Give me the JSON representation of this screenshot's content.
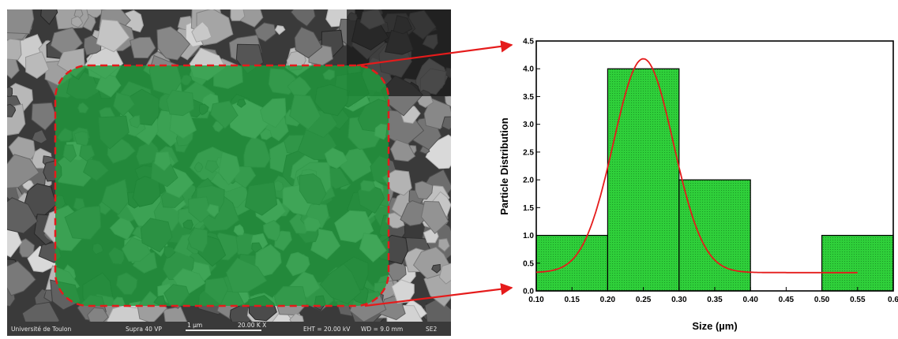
{
  "sem_panel": {
    "infobar": {
      "institution": "Université de Toulon",
      "instrument": "Supra 40 VP",
      "scale_label": "1 µm",
      "magnification": "20.00 K X",
      "eht": "EHT = 20.00 kV",
      "wd": "WD = 9.0 mm",
      "detector": "SE2"
    },
    "highlight_color": "#1e9b3c",
    "outline_color": "#e51b1b"
  },
  "chart_data": {
    "type": "bar",
    "bins": [
      {
        "from": 0.1,
        "to": 0.2,
        "value": 1
      },
      {
        "from": 0.2,
        "to": 0.3,
        "value": 4
      },
      {
        "from": 0.3,
        "to": 0.4,
        "value": 2
      },
      {
        "from": 0.4,
        "to": 0.5,
        "value": 0
      },
      {
        "from": 0.5,
        "to": 0.6,
        "value": 1
      }
    ],
    "fit_curve": {
      "type": "gaussian",
      "y0": 0.33,
      "xc": 0.25,
      "amplitude": 3.85,
      "sigma": 0.042,
      "x_range": [
        0.1,
        0.55
      ]
    },
    "xlabel": "Size (µm)",
    "ylabel": "Particle Distribution",
    "xlim": [
      0.1,
      0.6
    ],
    "ylim": [
      0.0,
      4.5
    ],
    "x_ticks": [
      "0.10",
      "0.15",
      "0.20",
      "0.25",
      "0.30",
      "0.35",
      "0.40",
      "0.45",
      "0.50",
      "0.55",
      "0.6"
    ],
    "y_ticks": [
      "0.0",
      "0.5",
      "1.0",
      "1.5",
      "2.0",
      "2.5",
      "3.0",
      "3.5",
      "4.0",
      "4.5"
    ],
    "colors": {
      "bar_fill": "#2fcf3a",
      "bar_edge": "#000000",
      "curve": "#e51b1b",
      "arrow": "#e51b1b"
    },
    "grid": false
  }
}
